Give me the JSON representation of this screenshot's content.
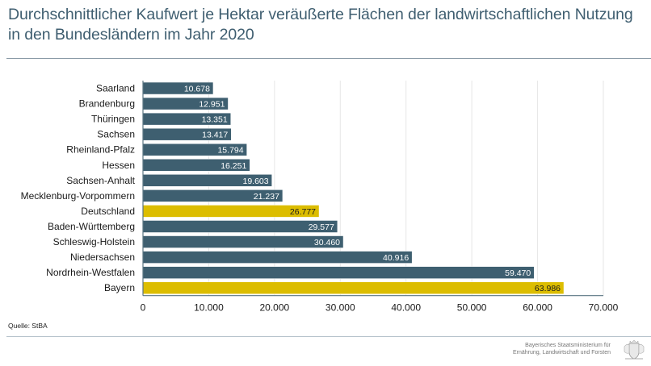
{
  "header": {
    "title": "Durchschnittlicher Kaufwert je Hektar veräußerte Flächen der landwirtschaftlichen Nutzung in den Bundesländern im Jahr 2020"
  },
  "source": "Quelle: StBA",
  "footer": {
    "line1": "Bayerisches Staatsministerium für",
    "line2": "Ernährung, Landwirtschaft und Forsten",
    "crest_icon": "bavarian-coat-of-arms-icon"
  },
  "colors": {
    "default_bar": "#3e5f70",
    "highlight_bar": "#dcbd00",
    "grid": "#e6e6e6",
    "axis": "#5a7483"
  },
  "chart_data": {
    "type": "bar",
    "orientation": "horizontal",
    "title": "Durchschnittlicher Kaufwert je Hektar veräußerte Flächen der landwirtschaftlichen Nutzung in den Bundesländern im Jahr 2020",
    "xlabel": "",
    "ylabel": "",
    "xlim": [
      0,
      70000
    ],
    "xticks": [
      0,
      10000,
      20000,
      30000,
      40000,
      50000,
      60000,
      70000
    ],
    "xtick_labels": [
      "0",
      "10.000",
      "20.000",
      "30.000",
      "40.000",
      "50.000",
      "60.000",
      "70.000"
    ],
    "grid": "vertical",
    "categories": [
      "Saarland",
      "Brandenburg",
      "Thüringen",
      "Sachsen",
      "Rheinland-Pfalz",
      "Hessen",
      "Sachsen-Anhalt",
      "Mecklenburg-Vorpommern",
      "Deutschland",
      "Baden-Württemberg",
      "Schleswig-Holstein",
      "Niedersachsen",
      "Nordrhein-Westfalen",
      "Bayern"
    ],
    "values": [
      10678,
      12951,
      13351,
      13417,
      15794,
      16251,
      19603,
      21237,
      26777,
      29577,
      30460,
      40916,
      59470,
      63986
    ],
    "value_labels": [
      "10.678",
      "12.951",
      "13.351",
      "13.417",
      "15.794",
      "16.251",
      "19.603",
      "21.237",
      "26.777",
      "29.577",
      "30.460",
      "40.916",
      "59.470",
      "63.986"
    ],
    "highlighted": [
      "Deutschland",
      "Bayern"
    ]
  }
}
